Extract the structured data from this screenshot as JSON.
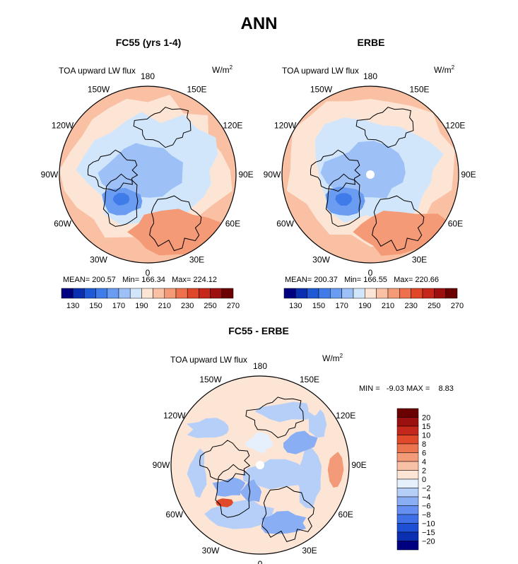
{
  "main_title": "ANN",
  "colors": {
    "coastline": "#000000",
    "seq_scale": [
      "#000080",
      "#0a2fb0",
      "#1f5ad6",
      "#3f7cea",
      "#6a9cf2",
      "#9dc0f7",
      "#d2e6fb",
      "#fde5d6",
      "#f9c0a4",
      "#f49a76",
      "#ee704c",
      "#e04628",
      "#c5281a",
      "#9c1010",
      "#6b0000"
    ],
    "diff_scale": [
      "#000080",
      "#0a2fb0",
      "#1f4fd4",
      "#3f70e8",
      "#658ff0",
      "#8aaef4",
      "#b6cff8",
      "#e6f0fc",
      "#fde5d6",
      "#f8c0a5",
      "#f39a78",
      "#ec744e",
      "#e04a2a",
      "#c4271b",
      "#9c1010",
      "#6b0000"
    ]
  },
  "panels": [
    {
      "title": "FC55 (yrs 1-4)",
      "variable": "TOA upward LW flux",
      "units_base": "W/m",
      "units_exp": "2",
      "lon_labels": [
        "180",
        "150E",
        "120E",
        "90E",
        "60E",
        "30E",
        "0",
        "30W",
        "60W",
        "90W",
        "120W",
        "150W"
      ],
      "mean_label": "MEAN= 200.57",
      "min_label": "Min= 166.34",
      "max_label": "Max= 224.12",
      "colorbar_ticks": [
        "130",
        "150",
        "170",
        "190",
        "210",
        "230",
        "250",
        "270"
      ]
    },
    {
      "title": "ERBE",
      "variable": "TOA upward LW flux",
      "units_base": "W/m",
      "units_exp": "2",
      "lon_labels": [
        "180",
        "150E",
        "120E",
        "90E",
        "60E",
        "30E",
        "0",
        "30W",
        "60W",
        "90W",
        "120W",
        "150W"
      ],
      "mean_label": "MEAN= 200.37",
      "min_label": "Min= 166.55",
      "max_label": "Max= 220.66",
      "colorbar_ticks": [
        "130",
        "150",
        "170",
        "190",
        "210",
        "230",
        "250",
        "270"
      ]
    },
    {
      "title": "FC55 - ERBE",
      "variable": "TOA upward LW flux",
      "units_base": "W/m",
      "units_exp": "2",
      "lon_labels": [
        "180",
        "150E",
        "120E",
        "90E",
        "60E",
        "30E",
        "0",
        "30W",
        "60W",
        "90W",
        "120W",
        "150W"
      ],
      "minmax_label": "MIN =   -9.03 MAX =    8.83",
      "colorbar_ticks": [
        "20",
        "15",
        "10",
        "8",
        "6",
        "4",
        "2",
        "0",
        "−2",
        "−4",
        "−6",
        "−8",
        "−10",
        "−15",
        "−20"
      ]
    }
  ],
  "chart_data": [
    {
      "type": "heatmap",
      "projection": "north polar stereographic",
      "title": "FC55 (yrs 1-4)",
      "variable": "TOA upward LW flux",
      "units": "W/m2",
      "mean": 200.57,
      "min": 166.34,
      "max": 224.12,
      "color_levels": [
        130,
        140,
        150,
        160,
        170,
        180,
        190,
        200,
        210,
        220,
        230,
        240,
        250,
        260,
        270
      ]
    },
    {
      "type": "heatmap",
      "projection": "north polar stereographic",
      "title": "ERBE",
      "variable": "TOA upward LW flux",
      "units": "W/m2",
      "mean": 200.37,
      "min": 166.55,
      "max": 220.66,
      "color_levels": [
        130,
        140,
        150,
        160,
        170,
        180,
        190,
        200,
        210,
        220,
        230,
        240,
        250,
        260,
        270
      ]
    },
    {
      "type": "heatmap",
      "projection": "north polar stereographic",
      "title": "FC55 - ERBE",
      "variable": "TOA upward LW flux",
      "units": "W/m2",
      "min": -9.03,
      "max": 8.83,
      "color_levels": [
        -20,
        -15,
        -10,
        -8,
        -6,
        -4,
        -2,
        0,
        2,
        4,
        6,
        8,
        10,
        15,
        20
      ]
    }
  ]
}
